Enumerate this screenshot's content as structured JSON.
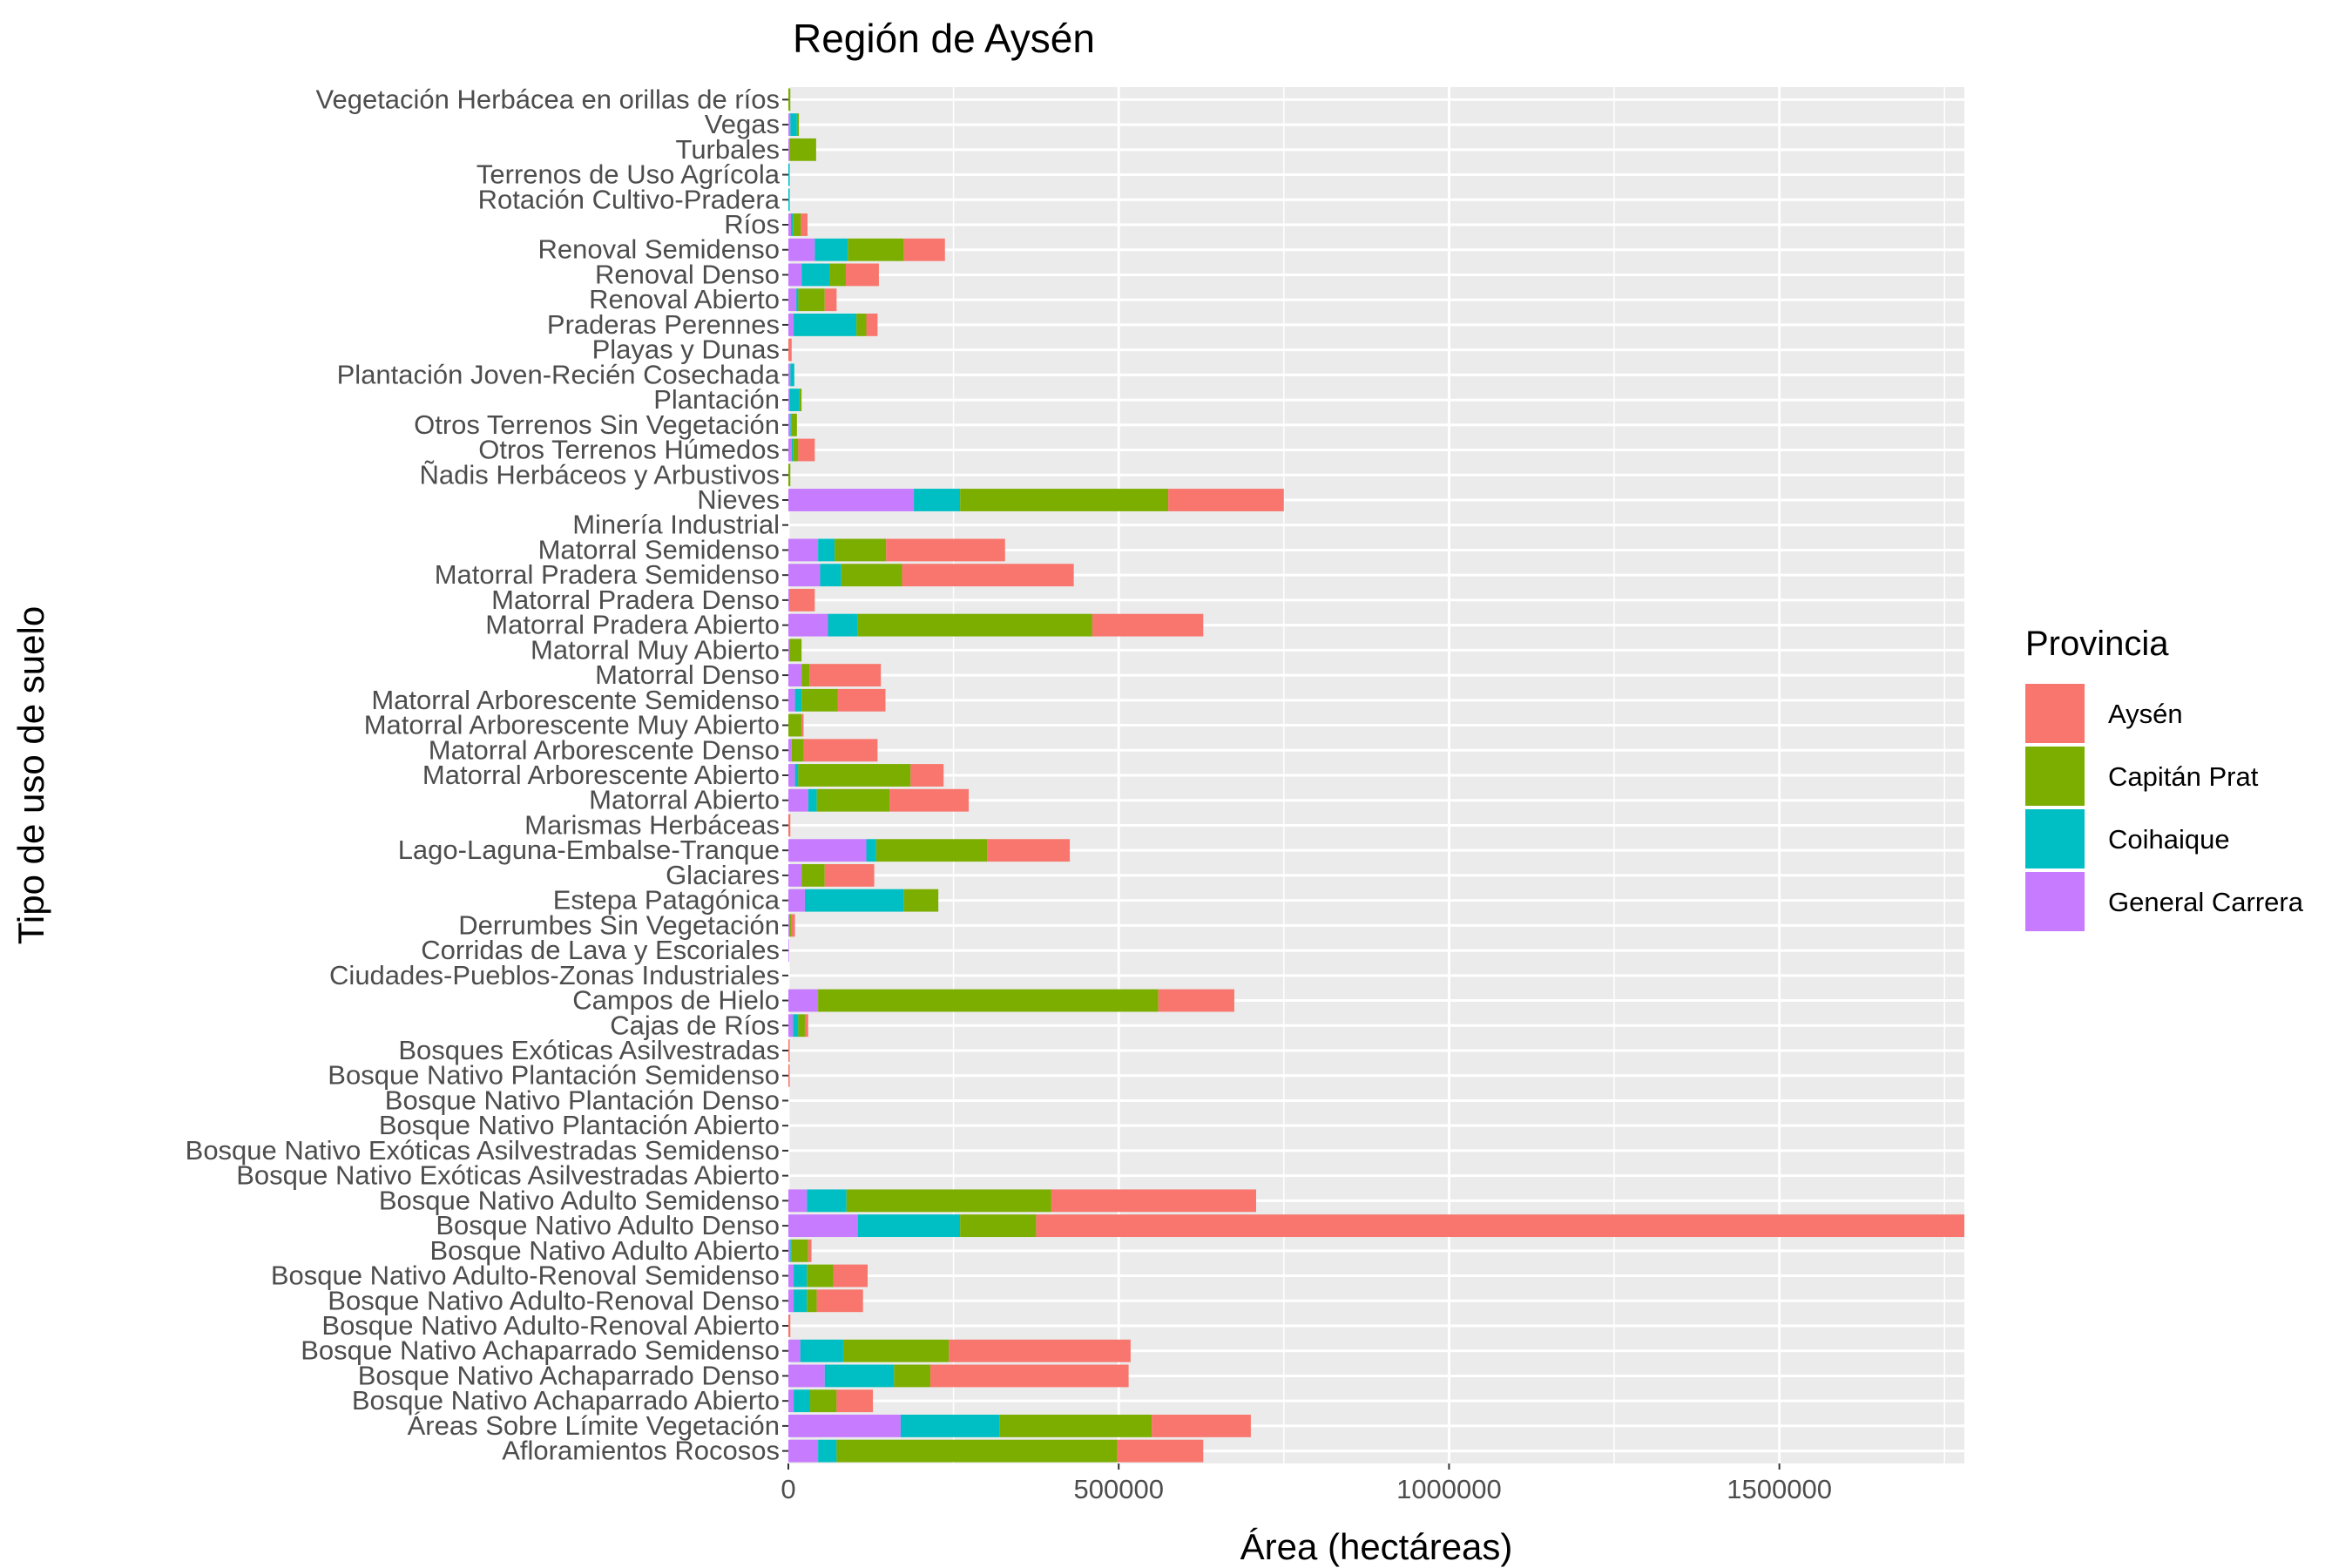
{
  "chart_data": {
    "type": "bar",
    "orientation": "horizontal",
    "stacked": true,
    "title": "Región de Aysén",
    "xlabel": "Área (hectáreas)",
    "ylabel": "Tipo de uso de suelo",
    "xlim": [
      0,
      1780000
    ],
    "x_ticks": [
      0,
      500000,
      1000000,
      1500000
    ],
    "grid": true,
    "legend": {
      "title": "Provincia",
      "position": "right"
    },
    "categories": [
      "Afloramientos Rocosos",
      "Áreas Sobre Límite Vegetación",
      "Bosque Nativo Achaparrado Abierto",
      "Bosque Nativo Achaparrado Denso",
      "Bosque Nativo Achaparrado Semidenso",
      "Bosque Nativo Adulto-Renoval Abierto",
      "Bosque Nativo Adulto-Renoval Denso",
      "Bosque Nativo Adulto-Renoval Semidenso",
      "Bosque Nativo Adulto Abierto",
      "Bosque Nativo Adulto Denso",
      "Bosque Nativo Adulto Semidenso",
      "Bosque Nativo Exóticas Asilvestradas Abierto",
      "Bosque Nativo Exóticas Asilvestradas Semidenso",
      "Bosque Nativo Plantación Abierto",
      "Bosque Nativo Plantación Denso",
      "Bosque Nativo Plantación Semidenso",
      "Bosques Exóticas Asilvestradas",
      "Cajas de Ríos",
      "Campos de Hielo",
      "Ciudades-Pueblos-Zonas Industriales",
      "Corridas de Lava y Escoriales",
      "Derrumbes Sin Vegetación",
      "Estepa Patagónica",
      "Glaciares",
      "Lago-Laguna-Embalse-Tranque",
      "Marismas Herbáceas",
      "Matorral Abierto",
      "Matorral Arborescente Abierto",
      "Matorral Arborescente Denso",
      "Matorral Arborescente Muy Abierto",
      "Matorral Arborescente Semidenso",
      "Matorral Denso",
      "Matorral Muy Abierto",
      "Matorral Pradera Abierto",
      "Matorral Pradera Denso",
      "Matorral Pradera Semidenso",
      "Matorral Semidenso",
      "Minería Industrial",
      "Nieves",
      "Ñadis Herbáceos y Arbustivos",
      "Otros Terrenos Húmedos",
      "Otros Terrenos Sin Vegetación",
      "Plantación",
      "Plantación Joven-Recién Cosechada",
      "Playas y Dunas",
      "Praderas Perennes",
      "Renoval Abierto",
      "Renoval Denso",
      "Renoval Semidenso",
      "Ríos",
      "Rotación Cultivo-Pradera",
      "Terrenos de Uso Agrícola",
      "Turbales",
      "Vegas",
      "Vegetación Herbácea en orillas de ríos"
    ],
    "series": [
      {
        "name": "General Carrera",
        "color": "#C77CFF",
        "values": [
          45000,
          170000,
          8000,
          55000,
          18000,
          0,
          8000,
          8000,
          3000,
          105000,
          28000,
          0,
          0,
          0,
          0,
          0,
          0,
          7000,
          45000,
          0,
          1000,
          2000,
          25000,
          20000,
          118000,
          0,
          30000,
          10000,
          5000,
          0,
          10000,
          20000,
          2000,
          60000,
          2000,
          48000,
          45000,
          0,
          190000,
          0,
          5000,
          3000,
          2000,
          3000,
          0,
          8000,
          12000,
          20000,
          40000,
          4000,
          0,
          0,
          2000,
          3000,
          0
        ]
      },
      {
        "name": "Coihaique",
        "color": "#00BFC4",
        "values": [
          28000,
          150000,
          25000,
          105000,
          65000,
          0,
          20000,
          20000,
          2000,
          155000,
          60000,
          0,
          0,
          0,
          0,
          0,
          0,
          8000,
          0,
          0,
          0,
          0,
          150000,
          0,
          15000,
          0,
          13000,
          5000,
          0,
          0,
          10000,
          0,
          0,
          45000,
          0,
          32000,
          25000,
          0,
          70000,
          0,
          2000,
          2000,
          15000,
          6000,
          0,
          95000,
          3000,
          42000,
          50000,
          3000,
          2000,
          2000,
          0,
          10000,
          0
        ]
      },
      {
        "name": "Capitán Prat",
        "color": "#7CAE00",
        "values": [
          425000,
          230000,
          40000,
          55000,
          160000,
          0,
          15000,
          40000,
          25000,
          115000,
          310000,
          0,
          0,
          0,
          0,
          0,
          0,
          10000,
          515000,
          0,
          0,
          3000,
          52000,
          35000,
          168000,
          0,
          110000,
          170000,
          18000,
          20000,
          55000,
          12000,
          18000,
          355000,
          0,
          92000,
          78000,
          0,
          315000,
          3000,
          8000,
          8000,
          3000,
          0,
          0,
          15000,
          40000,
          25000,
          85000,
          12000,
          0,
          0,
          40000,
          3000,
          3000
        ]
      },
      {
        "name": "Aysén",
        "color": "#F8766D",
        "values": [
          130000,
          150000,
          55000,
          300000,
          275000,
          3000,
          70000,
          52000,
          5000,
          1410000,
          310000,
          0,
          0,
          0,
          0,
          2000,
          2000,
          5000,
          115000,
          0,
          0,
          5000,
          0,
          75000,
          125000,
          3000,
          120000,
          50000,
          112000,
          3000,
          72000,
          108000,
          0,
          168000,
          38000,
          260000,
          180000,
          0,
          175000,
          0,
          25000,
          0,
          0,
          0,
          5000,
          17000,
          18000,
          50000,
          62000,
          10000,
          0,
          0,
          0,
          0,
          0
        ]
      }
    ]
  }
}
